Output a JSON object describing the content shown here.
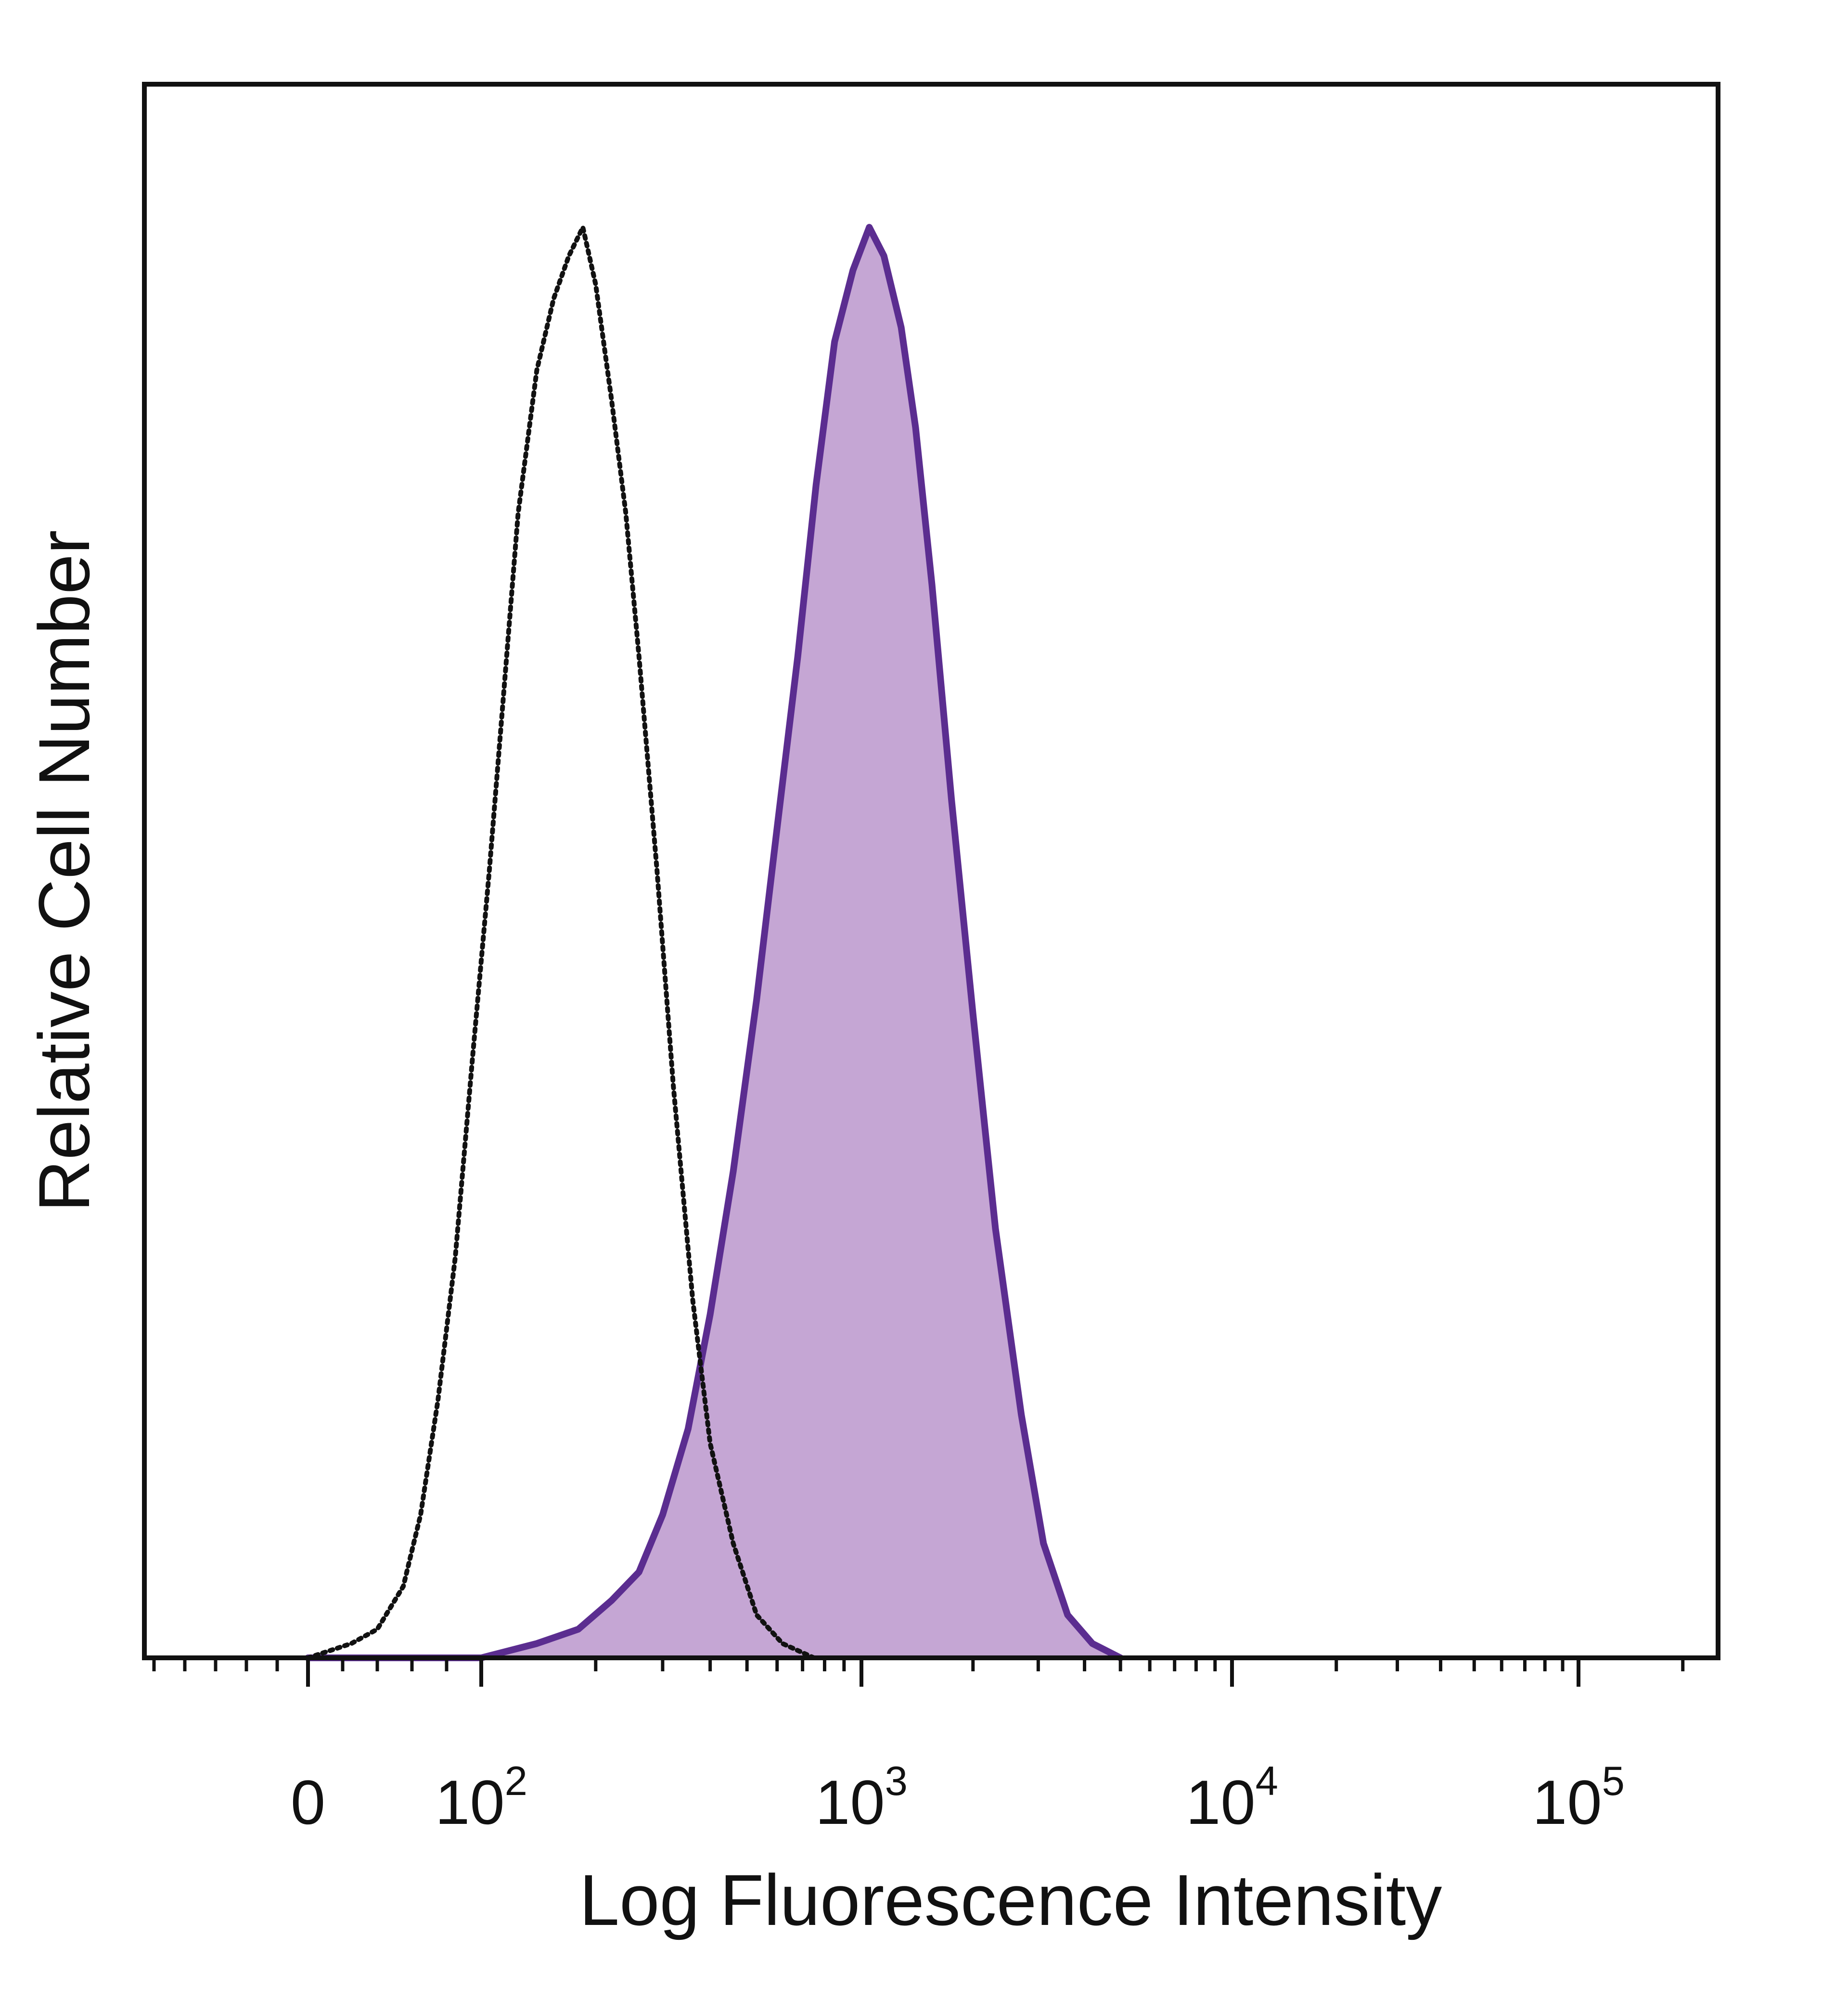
{
  "chart_data": {
    "type": "area",
    "title": "",
    "xlabel": "Log Fluorescence Intensity",
    "ylabel": "Relative Cell Number",
    "x_scale": "biexponential",
    "xlim": [
      -100,
      200000
    ],
    "ylim": [
      0,
      1.1
    ],
    "grid": false,
    "legend": "none",
    "x_ticks": [
      {
        "value": 0,
        "label": "0"
      },
      {
        "value": 100,
        "label": "10",
        "exponent": "2"
      },
      {
        "value": 1000,
        "label": "10",
        "exponent": "3"
      },
      {
        "value": 10000,
        "label": "10",
        "exponent": "4"
      },
      {
        "value": 100000,
        "label": "10",
        "exponent": "5"
      }
    ],
    "series": [
      {
        "style": "dotted-line",
        "color": "#111111",
        "points": [
          [
            0,
            0.0
          ],
          [
            25,
            0.01
          ],
          [
            40,
            0.02
          ],
          [
            55,
            0.05
          ],
          [
            65,
            0.1
          ],
          [
            75,
            0.18
          ],
          [
            85,
            0.28
          ],
          [
            95,
            0.42
          ],
          [
            105,
            0.55
          ],
          [
            115,
            0.68
          ],
          [
            125,
            0.8
          ],
          [
            140,
            0.9
          ],
          [
            155,
            0.95
          ],
          [
            170,
            0.98
          ],
          [
            185,
            1.0
          ],
          [
            200,
            0.96
          ],
          [
            220,
            0.88
          ],
          [
            240,
            0.8
          ],
          [
            260,
            0.7
          ],
          [
            290,
            0.55
          ],
          [
            320,
            0.4
          ],
          [
            360,
            0.25
          ],
          [
            400,
            0.15
          ],
          [
            460,
            0.08
          ],
          [
            530,
            0.03
          ],
          [
            620,
            0.01
          ],
          [
            750,
            0.0
          ]
        ]
      },
      {
        "style": "filled",
        "color": "#5b2d90",
        "fill": "#c5a6d4",
        "points": [
          [
            0,
            0.0
          ],
          [
            60,
            0.0
          ],
          [
            100,
            0.0
          ],
          [
            140,
            0.01
          ],
          [
            180,
            0.02
          ],
          [
            220,
            0.04
          ],
          [
            260,
            0.06
          ],
          [
            300,
            0.1
          ],
          [
            350,
            0.16
          ],
          [
            400,
            0.24
          ],
          [
            460,
            0.34
          ],
          [
            530,
            0.46
          ],
          [
            600,
            0.58
          ],
          [
            680,
            0.7
          ],
          [
            760,
            0.82
          ],
          [
            850,
            0.92
          ],
          [
            950,
            0.97
          ],
          [
            1050,
            1.0
          ],
          [
            1150,
            0.98
          ],
          [
            1280,
            0.93
          ],
          [
            1400,
            0.86
          ],
          [
            1550,
            0.75
          ],
          [
            1750,
            0.6
          ],
          [
            2000,
            0.45
          ],
          [
            2300,
            0.3
          ],
          [
            2700,
            0.17
          ],
          [
            3100,
            0.08
          ],
          [
            3600,
            0.03
          ],
          [
            4200,
            0.01
          ],
          [
            5000,
            0.0
          ]
        ]
      }
    ]
  }
}
